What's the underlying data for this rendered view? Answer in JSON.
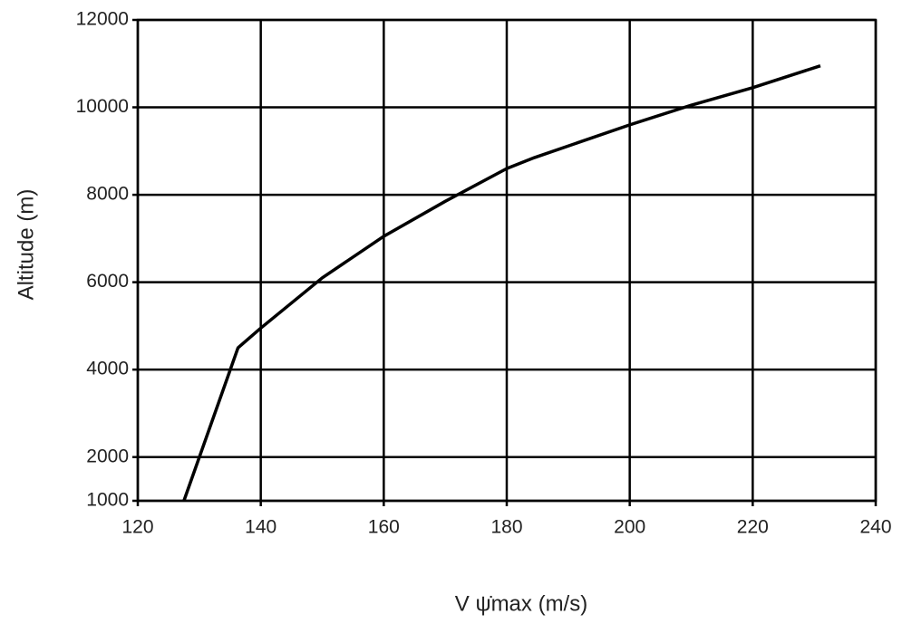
{
  "chart_data": {
    "type": "line",
    "xlabel": "V ψ̇max (m/s)",
    "ylabel": "Altitude (m)",
    "x": [
      127.5,
      136.3,
      140,
      150,
      160,
      170,
      180,
      184.5,
      200,
      210,
      220,
      231
    ],
    "series": [
      {
        "name": "Vψ̇max",
        "color": "#000000",
        "values": [
          1000,
          4500,
          4950,
          6100,
          7050,
          7850,
          8600,
          8850,
          9600,
          10050,
          10450,
          10950
        ]
      }
    ],
    "xlim": [
      120,
      240
    ],
    "xticks": [
      120,
      140,
      160,
      180,
      200,
      220,
      240
    ],
    "ylim": [
      1000,
      12000
    ],
    "yticks": [
      1000,
      2000,
      4000,
      6000,
      8000,
      10000,
      12000
    ],
    "grid": true
  }
}
